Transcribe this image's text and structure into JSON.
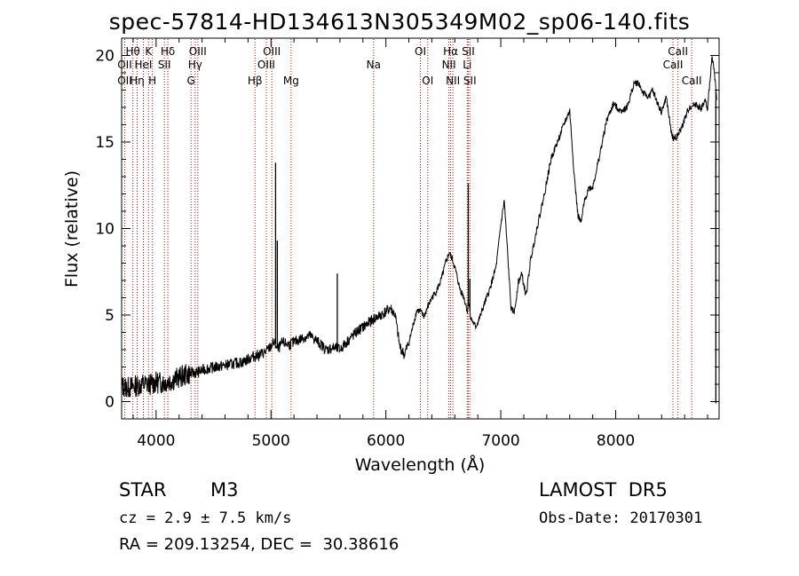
{
  "chart_data": {
    "type": "line",
    "title": "spec-57814-HD134613N305349M02_sp06-140.fits",
    "xlabel": "Wavelength (Å)",
    "ylabel": "Flux (relative)",
    "xlim": [
      3700,
      8900
    ],
    "ylim": [
      -1,
      21
    ],
    "xticks": [
      4000,
      5000,
      6000,
      7000,
      8000
    ],
    "yticks": [
      0,
      5,
      10,
      15,
      20
    ],
    "grid": false,
    "series": [
      {
        "x": [
          3700,
          3760,
          3820,
          3880,
          3940,
          4000,
          4060,
          4120,
          4200,
          4280,
          4360,
          4440,
          4520,
          4600,
          4680,
          4760,
          4840,
          4900,
          4960,
          5000,
          5020,
          5040,
          5060,
          5100,
          5160,
          5220,
          5280,
          5340,
          5400,
          5480,
          5540,
          5560,
          5600,
          5680,
          5760,
          5840,
          5900,
          5960,
          6040,
          6080,
          6120,
          6160,
          6200,
          6240,
          6270,
          6300,
          6330,
          6360,
          6400,
          6440,
          6480,
          6520,
          6550,
          6580,
          6610,
          6640,
          6680,
          6710,
          6720,
          6740,
          6780,
          6820,
          6860,
          6900,
          6960,
          7000,
          7030,
          7060,
          7090,
          7120,
          7150,
          7180,
          7220,
          7260,
          7320,
          7380,
          7440,
          7500,
          7560,
          7600,
          7640,
          7670,
          7700,
          7720,
          7760,
          7800,
          7860,
          7920,
          7980,
          8040,
          8100,
          8160,
          8200,
          8240,
          8290,
          8320,
          8360,
          8400,
          8440,
          8480,
          8500,
          8530,
          8560,
          8600,
          8640,
          8700,
          8740,
          8780,
          8800,
          8820,
          8840,
          8860,
          8880
        ],
        "y": [
          0.9,
          0.8,
          0.9,
          1.0,
          1.0,
          1.1,
          1.1,
          1.2,
          1.4,
          1.6,
          1.7,
          1.9,
          2.0,
          2.1,
          2.2,
          2.3,
          2.6,
          2.7,
          2.9,
          3.2,
          3.4,
          3.3,
          3.0,
          3.4,
          3.3,
          3.5,
          3.7,
          3.8,
          3.5,
          3.0,
          3.1,
          3.1,
          3.0,
          3.6,
          4.1,
          4.5,
          4.8,
          5.0,
          5.4,
          5.0,
          3.2,
          2.7,
          3.4,
          4.5,
          5.3,
          5.2,
          4.9,
          5.4,
          6.0,
          6.4,
          7.0,
          8.0,
          8.6,
          8.2,
          7.5,
          6.6,
          6.0,
          5.2,
          5.8,
          4.8,
          4.3,
          4.9,
          5.7,
          6.4,
          7.8,
          10.2,
          11.6,
          8.5,
          5.3,
          5.2,
          6.8,
          7.4,
          6.1,
          8.2,
          10.2,
          12.0,
          14.1,
          15.1,
          16.2,
          16.8,
          13.0,
          10.8,
          10.3,
          11.3,
          12.3,
          12.4,
          14.2,
          16.2,
          17.2,
          16.8,
          17.0,
          18.4,
          18.4,
          17.8,
          17.6,
          18.0,
          17.3,
          16.7,
          17.6,
          15.7,
          15.2,
          15.3,
          15.6,
          16.3,
          17.0,
          17.2,
          16.9,
          17.4,
          16.8,
          18.6,
          20.0,
          19.0,
          17.2
        ]
      }
    ],
    "spikes": [
      {
        "x": 5040,
        "y": 13.8
      },
      {
        "x": 5055,
        "y": 9.3
      },
      {
        "x": 5577,
        "y": 7.4
      },
      {
        "x": 6717,
        "y": 12.6
      },
      {
        "x": 6731,
        "y": 7.1
      },
      {
        "x": 8872,
        "y": -0.1
      }
    ],
    "lines": [
      {
        "label": "Hθ",
        "x": 3798,
        "row": 0
      },
      {
        "label": "OII",
        "x": 3727,
        "row": 1
      },
      {
        "label": "OII",
        "x": 3727,
        "row": 2
      },
      {
        "label": "Hη",
        "x": 3835,
        "row": 2
      },
      {
        "label": "K",
        "x": 3934,
        "row": 0
      },
      {
        "label": "HeI",
        "x": 3889,
        "row": 1
      },
      {
        "label": "H",
        "x": 3968,
        "row": 2
      },
      {
        "label": "Hδ",
        "x": 4102,
        "row": 0
      },
      {
        "label": "SII",
        "x": 4072,
        "row": 1
      },
      {
        "label": "OIII",
        "x": 4363,
        "row": 0
      },
      {
        "label": "Hγ",
        "x": 4340,
        "row": 1
      },
      {
        "label": "G",
        "x": 4304,
        "row": 2
      },
      {
        "label": "OIII",
        "x": 5007,
        "row": 0
      },
      {
        "label": "OIII",
        "x": 4959,
        "row": 1
      },
      {
        "label": "Hβ",
        "x": 4861,
        "row": 2
      },
      {
        "label": "Mg",
        "x": 5175,
        "row": 2
      },
      {
        "label": "Na",
        "x": 5893,
        "row": 1
      },
      {
        "label": "OI",
        "x": 6300,
        "row": 0
      },
      {
        "label": "OI",
        "x": 6364,
        "row": 2
      },
      {
        "label": "Hα",
        "x": 6563,
        "row": 0
      },
      {
        "label": "NII",
        "x": 6548,
        "row": 1
      },
      {
        "label": "NII",
        "x": 6583,
        "row": 2
      },
      {
        "label": "SII",
        "x": 6717,
        "row": 0
      },
      {
        "label": "Li",
        "x": 6708,
        "row": 1
      },
      {
        "label": "SII",
        "x": 6731,
        "row": 2
      },
      {
        "label": "CaII",
        "x": 8542,
        "row": 0
      },
      {
        "label": "CaII",
        "x": 8498,
        "row": 1
      },
      {
        "label": "CaII",
        "x": 8662,
        "row": 2
      }
    ]
  },
  "info": {
    "object_class": "STAR",
    "object_subclass": "M3",
    "survey": "LAMOST  DR5",
    "cz": "cz = 2.9 ± 7.5 km/s",
    "obs_date": "Obs-Date: 20170301",
    "coords": "RA = 209.13254, DEC =  30.38616"
  },
  "colors": {
    "spectrum": "#000000",
    "line_markers": "#cc0000"
  }
}
